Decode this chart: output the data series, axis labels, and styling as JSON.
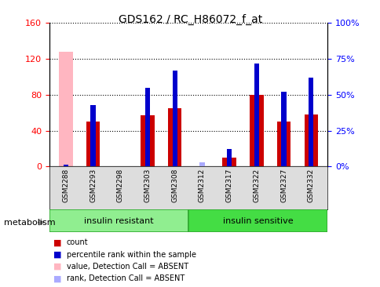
{
  "title": "GDS162 / RC_H86072_f_at",
  "samples": [
    "GSM2288",
    "GSM2293",
    "GSM2298",
    "GSM2303",
    "GSM2308",
    "GSM2312",
    "GSM2317",
    "GSM2322",
    "GSM2327",
    "GSM2332"
  ],
  "red_values": [
    0,
    50,
    0,
    57,
    65,
    0,
    10,
    80,
    50,
    58
  ],
  "blue_values": [
    0,
    43,
    0,
    55,
    67,
    0,
    12,
    72,
    52,
    62
  ],
  "pink_value": 128,
  "pink_rank": 1,
  "light_blue_rank": 3,
  "absent_red_idx": 0,
  "absent_rank_idx": 5,
  "group1_label": "insulin resistant",
  "group2_label": "insulin sensitive",
  "ylim_left": [
    0,
    160
  ],
  "ylim_right": [
    0,
    100
  ],
  "yticks_left": [
    0,
    40,
    80,
    120,
    160
  ],
  "yticks_right": [
    0,
    25,
    50,
    75,
    100
  ],
  "yticklabels_right": [
    "0%",
    "25%",
    "50%",
    "75%",
    "100%"
  ],
  "bg_color": "#ffffff",
  "red_color": "#cc0000",
  "blue_color": "#0000cc",
  "pink_color": "#ffb6c1",
  "light_blue_color": "#aaaaff",
  "legend_items": [
    {
      "label": "count",
      "color": "#cc0000"
    },
    {
      "label": "percentile rank within the sample",
      "color": "#0000cc"
    },
    {
      "label": "value, Detection Call = ABSENT",
      "color": "#ffb6c1"
    },
    {
      "label": "rank, Detection Call = ABSENT",
      "color": "#aaaaff"
    }
  ]
}
